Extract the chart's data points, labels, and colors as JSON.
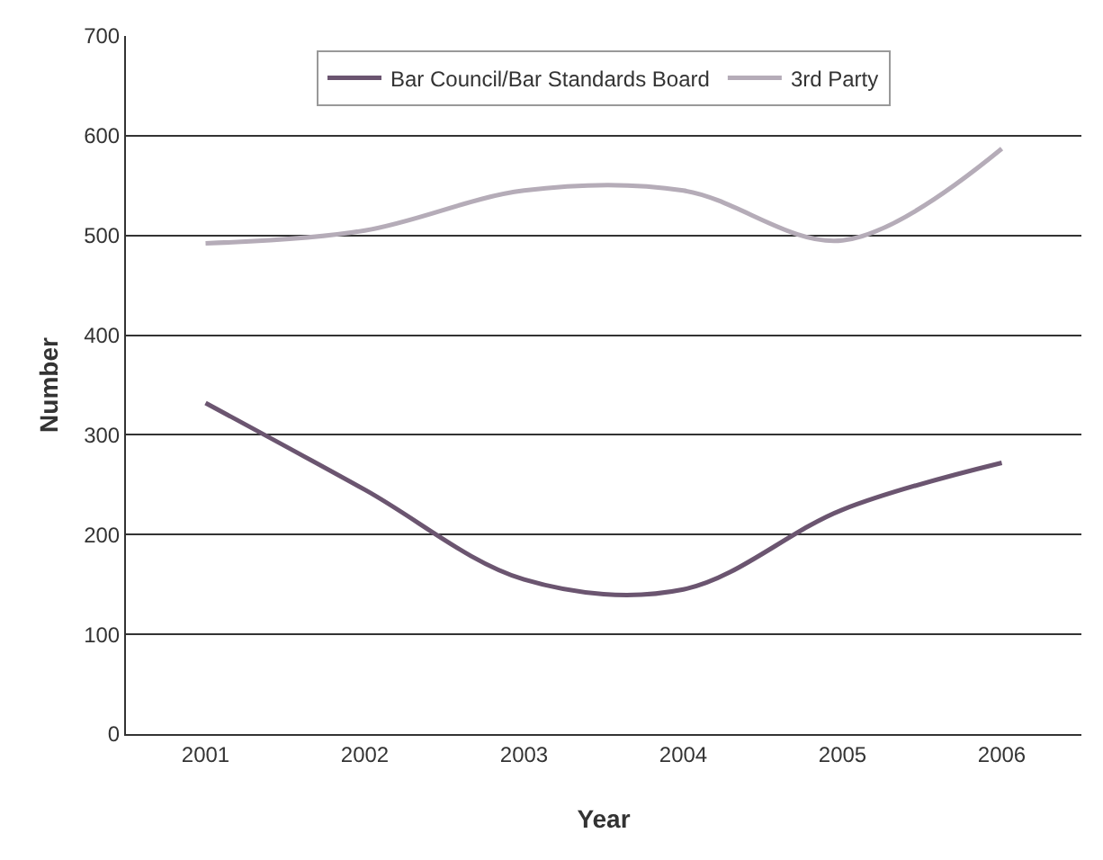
{
  "chart_data": {
    "type": "line",
    "xlabel": "Year",
    "ylabel": "Number",
    "categories": [
      "2001",
      "2002",
      "2003",
      "2004",
      "2005",
      "2006"
    ],
    "series": [
      {
        "name": "Bar Council/Bar Standards Board",
        "color": "#6b5570",
        "values": [
          332,
          245,
          155,
          145,
          225,
          272
        ]
      },
      {
        "name": "3rd Party",
        "color": "#b5acb8",
        "values": [
          492,
          505,
          545,
          545,
          495,
          587
        ]
      }
    ],
    "ylim": [
      0,
      700
    ],
    "yticks": [
      0,
      100,
      200,
      300,
      400,
      500,
      600,
      700
    ],
    "grid": "y",
    "legend": "top",
    "marker": "none",
    "line_style": "solid"
  }
}
